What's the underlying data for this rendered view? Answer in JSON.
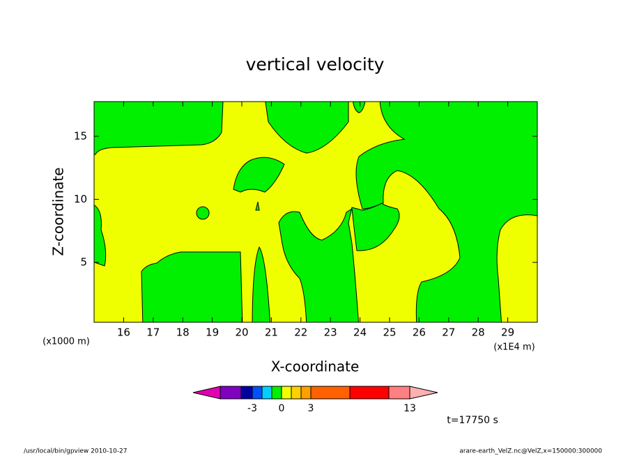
{
  "chart_data": {
    "type": "contour",
    "title": "vertical velocity",
    "x_label": "X-coordinate",
    "y_label": "Z-coordinate",
    "x_unit": "(x1E4 m)",
    "y_unit": "(x1000 m)",
    "xlim": [
      15,
      30
    ],
    "ylim": [
      0.25,
      17.75
    ],
    "xticks": [
      16,
      17,
      18,
      19,
      20,
      21,
      22,
      23,
      24,
      25,
      26,
      27,
      28,
      29
    ],
    "yticks": [
      5,
      10,
      15
    ],
    "colorbar": {
      "colors": [
        "#e000b0",
        "#8000c0",
        "#0000a0",
        "#0050ff",
        "#00d0ff",
        "#00f000",
        "#f0ff00",
        "#ffd000",
        "#ffa000",
        "#ff6000",
        "#ff0000",
        "#ff8080",
        "#ffb0b0"
      ],
      "ticks": [
        -3,
        0,
        3,
        13
      ]
    },
    "time_label": "t=17750 s",
    "footer_left": "/usr/local/bin/gpview   2010-10-27",
    "footer_right": "arare-earth_VelZ.nc@VelZ,x=150000:300000"
  }
}
